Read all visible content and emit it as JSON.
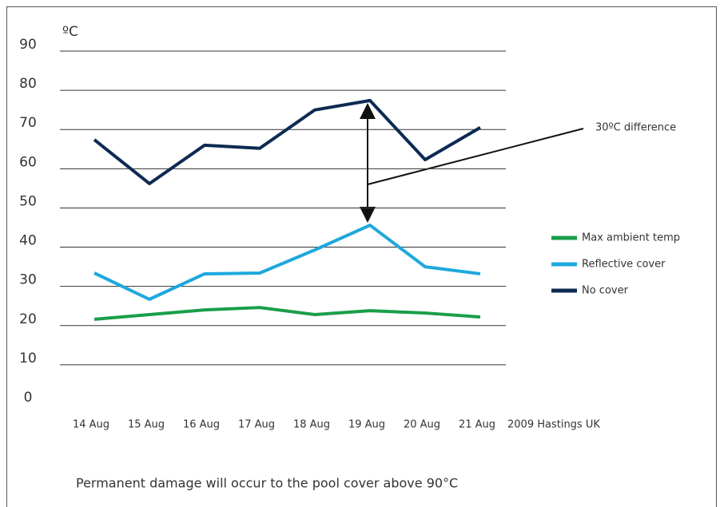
{
  "chart_data": {
    "type": "line",
    "y_unit": "ºC",
    "categories": [
      "14 Aug",
      "15 Aug",
      "16 Aug",
      "17 Aug",
      "18 Aug",
      "19 Aug",
      "20 Aug",
      "21 Aug"
    ],
    "series": [
      {
        "name": "Max ambient temp",
        "color": "#1a9e48",
        "values": [
          21.6,
          22.8,
          24,
          24.6,
          22.8,
          23.8,
          23.2,
          22.2
        ]
      },
      {
        "name": "Reflective cover",
        "color": "#1ea8dd",
        "values": [
          33.4,
          26.7,
          33.2,
          33.4,
          39.3,
          45.6,
          35,
          33.2
        ]
      },
      {
        "name": "No cover",
        "color": "#0d2a52",
        "values": [
          67.4,
          56.2,
          66,
          65.2,
          75,
          77.4,
          62.3,
          70.5
        ]
      }
    ],
    "ylim": [
      0,
      90
    ],
    "yticks": [
      0,
      10,
      20,
      30,
      40,
      50,
      60,
      70,
      80,
      90
    ],
    "grid": true,
    "legend": "right",
    "annotations": [
      "30ºC difference",
      "2009 Hastings UK"
    ],
    "note": "Permanent damage will occur to the pool cover above 90°C"
  }
}
